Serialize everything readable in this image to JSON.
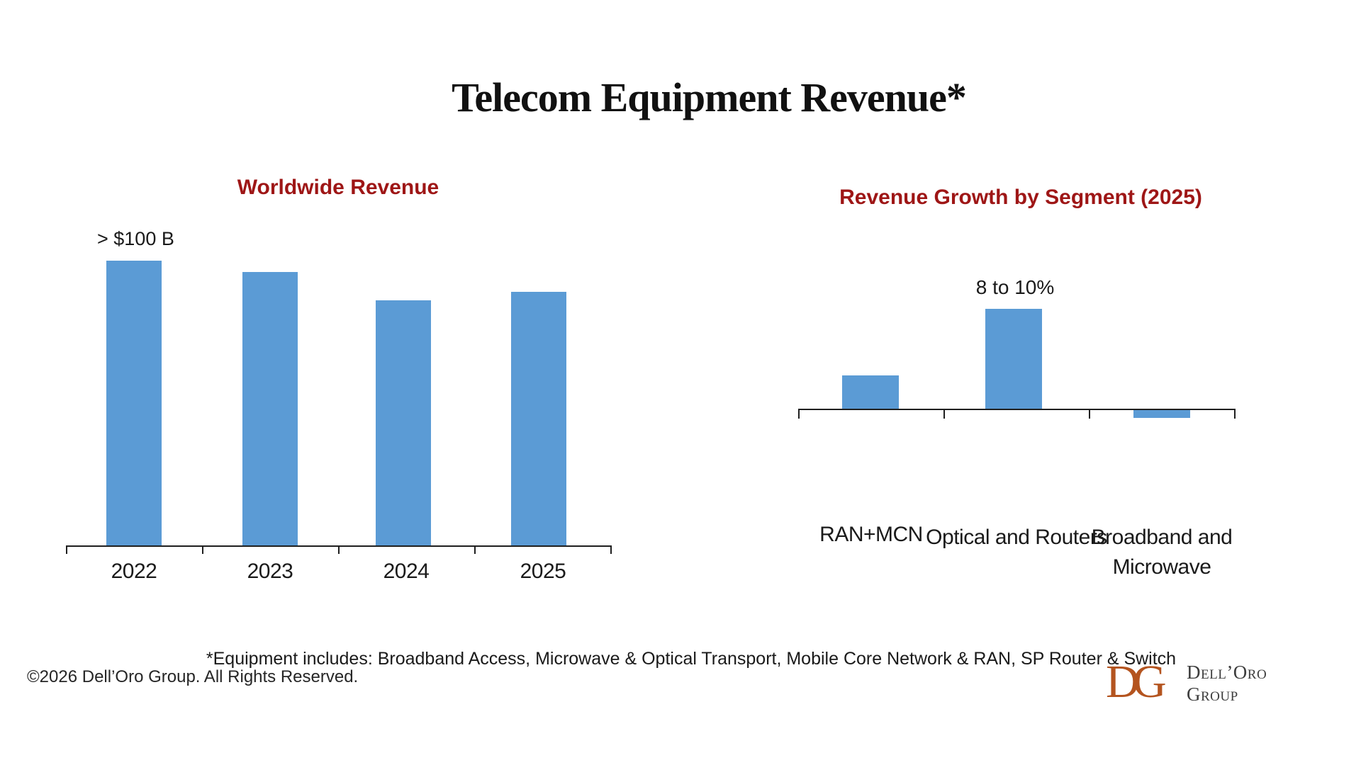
{
  "page": {
    "title": "Telecom Equipment Revenue*",
    "footnote": "*Equipment includes: Broadband Access, Microwave & Optical Transport, Mobile Core Network & RAN, SP Router & Switch",
    "copyright": "©2026 Dell’Oro Group. All Rights Reserved."
  },
  "colors": {
    "bar": "#5B9BD5",
    "chart_title": "#9E1616",
    "axis": "#1f1f1f",
    "text": "#1a1a1a",
    "logo_mark": "#B4541F",
    "logo_text": "#3d3d3d"
  },
  "logo": {
    "monogram_letter_1": "D",
    "monogram_letter_2": "G",
    "wordmark_line1": "Dell’Oro",
    "wordmark_line2": "Group"
  },
  "chart_data": [
    {
      "type": "bar",
      "title": "Worldwide Revenue",
      "categories": [
        "2022",
        "2023",
        "2024",
        "2025"
      ],
      "values": [
        100,
        96,
        86,
        89
      ],
      "unit": "indexed revenue, 2022 = 100 (bars unlabeled; values estimated from bar heights)",
      "annotation": "> $100 B",
      "annotation_target": "2022",
      "ylim": [
        0,
        115
      ],
      "grid": false,
      "legend": false,
      "bar_color": "#5B9BD5"
    },
    {
      "type": "bar",
      "title": "Revenue Growth by Segment (2025)",
      "categories": [
        "RAN+MCN",
        "Optical and Routers",
        "Broadband and Microwave"
      ],
      "values": [
        3,
        9,
        -0.7
      ],
      "unit": "percent growth; only middle bar labeled, others estimated from heights",
      "annotation": "8 to 10%",
      "annotation_target": "Optical and Routers",
      "ylim": [
        -2,
        12
      ],
      "grid": false,
      "legend": false,
      "bar_color": "#5B9BD5"
    }
  ]
}
